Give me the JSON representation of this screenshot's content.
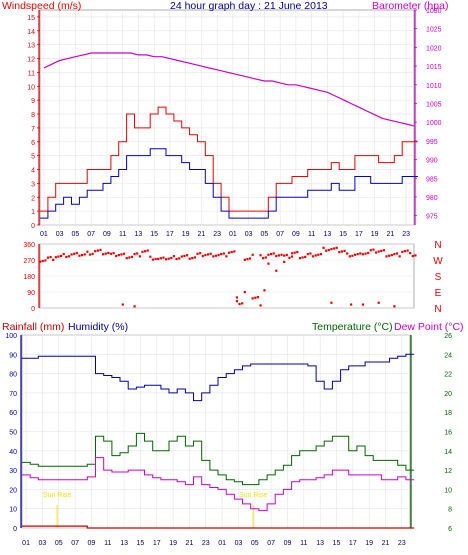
{
  "title": "24 hour graph day : 21 June 2013",
  "colors": {
    "wind": "#ee0000",
    "gust": "#ee0000",
    "baro": "#cc00cc",
    "dir": "#ee0000",
    "hum": "#0000aa",
    "temp": "#006600",
    "dew": "#cc00cc",
    "rain": "#cc0000",
    "grid": "#e4e4e4",
    "sun": "#ffdd00"
  },
  "chart_data": [
    {
      "type": "line",
      "name_top_left": "Windspeed (m/s)",
      "name_top_right": "Barometer (hpa)",
      "y_left_ticks": [
        "0",
        "1",
        "2",
        "3",
        "4",
        "5",
        "6",
        "7",
        "8",
        "9",
        "10",
        "11",
        "12",
        "13",
        "14",
        "15"
      ],
      "y_right_ticks": [
        "975",
        "980",
        "985",
        "990",
        "995",
        "1000",
        "1005",
        "1010",
        "1015",
        "1020",
        "1025",
        "1030"
      ],
      "x_ticks": [
        "01",
        "03",
        "05",
        "07",
        "09",
        "11",
        "13",
        "15",
        "17",
        "19",
        "21",
        "23",
        "01",
        "03",
        "05",
        "07",
        "09",
        "11",
        "13",
        "15",
        "17",
        "19",
        "21",
        "23"
      ],
      "ylim_left": [
        0,
        15.5
      ],
      "ylim_right": [
        972.5,
        1030
      ],
      "hours": [
        0,
        1,
        2,
        3,
        4,
        5,
        6,
        7,
        8,
        9,
        10,
        11,
        12,
        13,
        14,
        15,
        16,
        17,
        18,
        19,
        20,
        21,
        22,
        23,
        24,
        25,
        26,
        27,
        28,
        29,
        30,
        31,
        32,
        33,
        34,
        35,
        36,
        37,
        38,
        39,
        40,
        41,
        42,
        43,
        44,
        45,
        46,
        47
      ],
      "series": [
        {
          "role": "gust",
          "values": [
            1,
            2,
            3,
            3,
            3,
            3,
            4,
            4,
            4,
            5,
            6,
            8,
            7,
            7,
            8,
            8.5,
            8,
            7.5,
            7,
            6.5,
            6,
            5,
            3,
            2,
            1,
            1,
            1,
            1,
            1,
            2,
            3,
            3,
            3.5,
            3.5,
            4,
            4,
            4,
            4.5,
            4,
            4,
            5,
            5,
            5,
            4.5,
            4.5,
            5,
            6,
            6
          ]
        },
        {
          "role": "wind",
          "values": [
            0.5,
            1,
            1.5,
            2,
            1.5,
            2,
            2.5,
            2.5,
            3,
            3.5,
            4,
            5,
            5,
            5,
            5.5,
            5.5,
            5,
            5,
            4.5,
            4,
            4,
            3,
            2,
            1,
            0.5,
            0.5,
            0.5,
            0.5,
            0.5,
            1,
            2,
            2,
            2,
            2,
            2.5,
            2.5,
            2.5,
            3,
            2.5,
            2.5,
            3.5,
            3.5,
            3,
            3,
            3,
            3,
            3.5,
            3.5
          ]
        },
        {
          "role": "baro",
          "values": [
            1014.5,
            1015.5,
            1016.5,
            1017,
            1017.5,
            1018,
            1018.5,
            1018.5,
            1018.5,
            1018.5,
            1018.5,
            1018.5,
            1018,
            1018,
            1017.5,
            1017.5,
            1017,
            1016.5,
            1016,
            1015.5,
            1015,
            1014.5,
            1014,
            1013.5,
            1013,
            1012.5,
            1012,
            1011.5,
            1011,
            1011,
            1010.5,
            1010,
            1010,
            1009.5,
            1009,
            1008.5,
            1008,
            1007,
            1006,
            1005,
            1004,
            1003,
            1002,
            1001,
            1000.5,
            1000,
            999.5,
            999
          ]
        }
      ]
    },
    {
      "type": "scatter",
      "name": "Wind direction",
      "y_ticks": [
        "360",
        "270",
        "180",
        "90",
        "0"
      ],
      "compass": [
        "N",
        "W",
        "S",
        "E",
        "N"
      ],
      "ylim": [
        0,
        360
      ],
      "hours": [
        0,
        1,
        2,
        3,
        4,
        5,
        6,
        7,
        8,
        9,
        10,
        11,
        12,
        13,
        14,
        15,
        16,
        17,
        18,
        19,
        20,
        21,
        22,
        23,
        24,
        25,
        26,
        27,
        28,
        29,
        30,
        31,
        32,
        33,
        34,
        35,
        36,
        37,
        38,
        39,
        40,
        41,
        42,
        43,
        44,
        45,
        46,
        47
      ],
      "dir_values": [
        270,
        280,
        290,
        295,
        300,
        300,
        310,
        320,
        310,
        300,
        300,
        290,
        300,
        320,
        280,
        275,
        280,
        285,
        290,
        285,
        300,
        300,
        300,
        300,
        315,
        30,
        270,
        60,
        290,
        300,
        300,
        290,
        310,
        290,
        300,
        300,
        330,
        330,
        320,
        300,
        300,
        310,
        320,
        320,
        300,
        300,
        320,
        300
      ],
      "outliers": [
        [
          10.5,
          20
        ],
        [
          12,
          10
        ],
        [
          25,
          60
        ],
        [
          26,
          90
        ],
        [
          27,
          300
        ],
        [
          28,
          15
        ],
        [
          28.5,
          100
        ],
        [
          29,
          250
        ],
        [
          30,
          210
        ],
        [
          31,
          260
        ],
        [
          32,
          290
        ],
        [
          37,
          30
        ],
        [
          39.5,
          20
        ],
        [
          41,
          20
        ],
        [
          43,
          30
        ],
        [
          45,
          10
        ]
      ]
    },
    {
      "type": "line",
      "name_left_a": "Rainfall (mm)",
      "name_left_b": "Humidity (%)",
      "name_right_a": "Temperature (°C)",
      "name_right_b": "Dew Point (°C)",
      "y_left_ticks": [
        "0",
        "10",
        "20",
        "30",
        "40",
        "50",
        "60",
        "70",
        "80",
        "90",
        "100"
      ],
      "y_right_ticks": [
        "6",
        "8",
        "10",
        "12",
        "14",
        "16",
        "18",
        "20",
        "22",
        "24",
        "26"
      ],
      "x_ticks": [
        "01",
        "03",
        "05",
        "07",
        "09",
        "11",
        "13",
        "15",
        "17",
        "19",
        "21",
        "23",
        "01",
        "03",
        "05",
        "07",
        "09",
        "11",
        "13",
        "15",
        "17",
        "19",
        "21",
        "23"
      ],
      "ylim_left": [
        0,
        100
      ],
      "ylim_right": [
        6,
        26
      ],
      "sunrise_label": "Sun Rise",
      "hours": [
        0,
        1,
        2,
        3,
        4,
        5,
        6,
        7,
        8,
        9,
        10,
        11,
        12,
        13,
        14,
        15,
        16,
        17,
        18,
        19,
        20,
        21,
        22,
        23,
        24,
        25,
        26,
        27,
        28,
        29,
        30,
        31,
        32,
        33,
        34,
        35,
        36,
        37,
        38,
        39,
        40,
        41,
        42,
        43,
        44,
        45,
        46,
        47
      ],
      "series": [
        {
          "role": "hum",
          "values": [
            88,
            88,
            89,
            89,
            89,
            89,
            89,
            89,
            89,
            80,
            79,
            78,
            76,
            72,
            73,
            74,
            74,
            72,
            70,
            72,
            70,
            66,
            70,
            74,
            78,
            80,
            82,
            84,
            85,
            85,
            85,
            85,
            85,
            85,
            85,
            84,
            76,
            72,
            76,
            82,
            84,
            84,
            86,
            86,
            86,
            88,
            89,
            90
          ]
        },
        {
          "role": "temp",
          "values": [
            12.8,
            12.6,
            12.4,
            12.4,
            12.4,
            12.4,
            12.4,
            12.4,
            12.6,
            15.5,
            15,
            13.5,
            13.8,
            14.5,
            15.8,
            15,
            14,
            14,
            15,
            15.5,
            14.5,
            15,
            13,
            12,
            11.5,
            11,
            10.8,
            10.5,
            10.5,
            11,
            11.5,
            12,
            12.5,
            13.5,
            14,
            14,
            14.5,
            15,
            15.5,
            15.5,
            14,
            14.5,
            13.5,
            13,
            13,
            13,
            12.5,
            12
          ]
        },
        {
          "role": "dew",
          "values": [
            11.5,
            11.2,
            11,
            11,
            11,
            11,
            11,
            11,
            11.3,
            13.3,
            12,
            11.8,
            11.8,
            12,
            12,
            11.5,
            11.2,
            11,
            11,
            10.8,
            10.5,
            11.3,
            10.5,
            10.2,
            10,
            9.5,
            9,
            8.5,
            8,
            7.8,
            8.5,
            9.5,
            10,
            10.8,
            11,
            11,
            11.2,
            11.5,
            12,
            12,
            11.5,
            11.5,
            11.5,
            11.5,
            11,
            11,
            11.3,
            11
          ]
        },
        {
          "role": "rain",
          "values": [
            1,
            1,
            1,
            1,
            1,
            1,
            1,
            1,
            0,
            0,
            0,
            0,
            0,
            0,
            0,
            0,
            0,
            0,
            0,
            0,
            0,
            0,
            0,
            0,
            0,
            0,
            0,
            0,
            0,
            0,
            0,
            0,
            0,
            0,
            0,
            0,
            0,
            0,
            0,
            0,
            0,
            0,
            0,
            0,
            0,
            0,
            0,
            0
          ]
        }
      ]
    }
  ]
}
